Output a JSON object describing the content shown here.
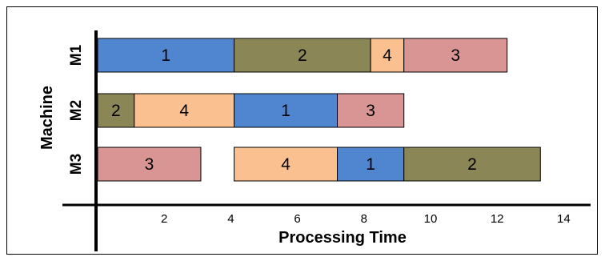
{
  "chart_data": {
    "type": "gantt",
    "xlabel": "Processing Time",
    "ylabel": "Machine",
    "xlim": [
      0,
      15
    ],
    "x_ticks": [
      2,
      4,
      6,
      8,
      10,
      12,
      14
    ],
    "grid": false,
    "machines": [
      "M1",
      "M2",
      "M3"
    ],
    "colors": {
      "1": "#4f86cf",
      "2": "#8a8655",
      "3": "#d99594",
      "4": "#fac090"
    },
    "tasks": [
      {
        "machine": "M1",
        "job": "1",
        "start": 0.0,
        "end": 4.1
      },
      {
        "machine": "M1",
        "job": "2",
        "start": 4.1,
        "end": 8.2
      },
      {
        "machine": "M1",
        "job": "4",
        "start": 8.2,
        "end": 9.2
      },
      {
        "machine": "M1",
        "job": "3",
        "start": 9.2,
        "end": 12.3
      },
      {
        "machine": "M2",
        "job": "2",
        "start": 0.0,
        "end": 1.1
      },
      {
        "machine": "M2",
        "job": "4",
        "start": 1.1,
        "end": 4.1
      },
      {
        "machine": "M2",
        "job": "1",
        "start": 4.1,
        "end": 7.2
      },
      {
        "machine": "M2",
        "job": "3",
        "start": 7.2,
        "end": 9.2
      },
      {
        "machine": "M3",
        "job": "3",
        "start": 0.0,
        "end": 3.1
      },
      {
        "machine": "M3",
        "job": "4",
        "start": 4.1,
        "end": 7.2
      },
      {
        "machine": "M3",
        "job": "1",
        "start": 7.2,
        "end": 9.2
      },
      {
        "machine": "M3",
        "job": "2",
        "start": 9.2,
        "end": 13.3
      }
    ]
  }
}
